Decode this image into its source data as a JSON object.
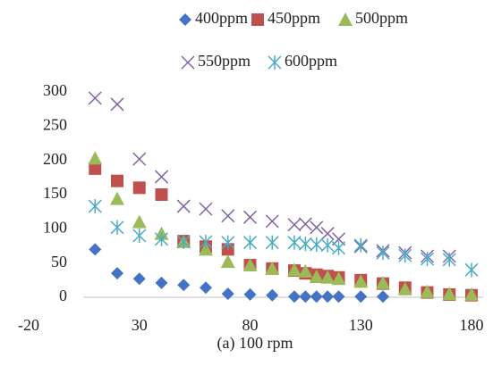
{
  "chart_data": {
    "type": "scatter",
    "caption": "(a) 100 rpm",
    "xlim": [
      -20,
      180
    ],
    "xticks": [
      -20,
      30,
      80,
      130,
      180
    ],
    "ylim": [
      0,
      300
    ],
    "yticks": [
      0,
      50,
      100,
      150,
      200,
      250,
      300
    ],
    "series": [
      {
        "name": "400ppm",
        "color": "#4472c4",
        "marker": "diamond",
        "x": [
          10,
          20,
          30,
          40,
          50,
          60,
          70,
          80,
          90,
          100,
          105,
          110,
          115,
          120,
          130,
          140
        ],
        "values": [
          70,
          35,
          27,
          21,
          18,
          14,
          5,
          4,
          3,
          1,
          1,
          1,
          1,
          1,
          1,
          1
        ]
      },
      {
        "name": "450ppm",
        "color": "#c0504d",
        "marker": "square",
        "x": [
          10,
          20,
          30,
          40,
          50,
          60,
          70,
          80,
          90,
          100,
          105,
          110,
          115,
          120,
          130,
          140,
          150,
          160,
          170,
          180
        ],
        "values": [
          188,
          170,
          160,
          150,
          82,
          74,
          70,
          47,
          42,
          39,
          35,
          33,
          31,
          29,
          25,
          20,
          14,
          7,
          4,
          3
        ]
      },
      {
        "name": "500ppm",
        "color": "#9bbb59",
        "marker": "triangle",
        "x": [
          10,
          20,
          30,
          40,
          50,
          60,
          70,
          80,
          90,
          100,
          105,
          110,
          115,
          120,
          130,
          140,
          150,
          160,
          170,
          180
        ],
        "values": [
          203,
          144,
          110,
          93,
          81,
          70,
          52,
          47,
          42,
          40,
          38,
          30,
          29,
          27,
          23,
          21,
          12,
          8,
          5,
          4
        ]
      },
      {
        "name": "550ppm",
        "color": "#8064a2",
        "marker": "cross",
        "x": [
          10,
          20,
          30,
          40,
          50,
          60,
          70,
          80,
          90,
          100,
          105,
          110,
          115,
          120,
          130,
          140,
          150,
          160,
          170
        ],
        "values": [
          291,
          282,
          202,
          176,
          133,
          129,
          119,
          117,
          111,
          106,
          107,
          102,
          93,
          85,
          74,
          68,
          65,
          60,
          60
        ]
      },
      {
        "name": "600ppm",
        "color": "#4bacc6",
        "marker": "star",
        "x": [
          10,
          20,
          30,
          40,
          50,
          60,
          70,
          80,
          90,
          100,
          105,
          110,
          115,
          120,
          130,
          140,
          150,
          160,
          170,
          180
        ],
        "values": [
          133,
          102,
          90,
          85,
          81,
          81,
          80,
          80,
          80,
          80,
          78,
          77,
          76,
          72,
          76,
          65,
          61,
          56,
          55,
          40
        ]
      }
    ]
  }
}
